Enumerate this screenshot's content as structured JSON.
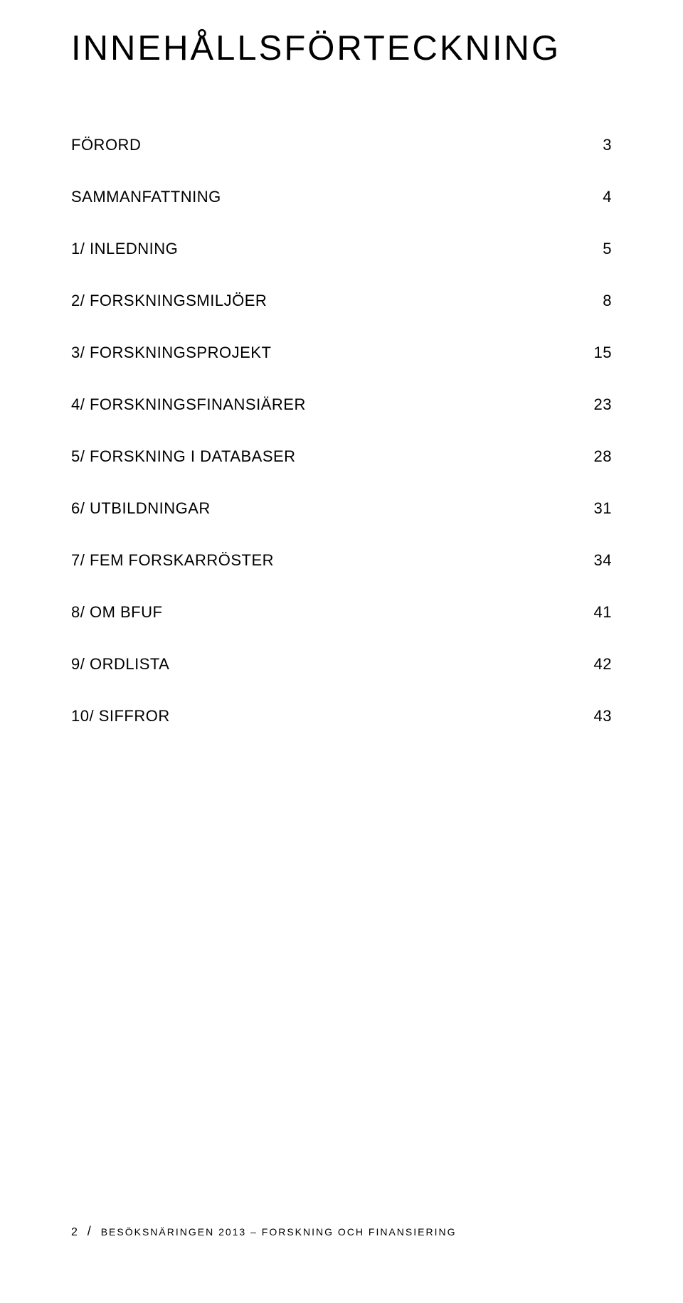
{
  "title": "INNEHÅLLSFÖRTECKNING",
  "toc": [
    {
      "label": "FÖRORD",
      "page": "3"
    },
    {
      "label": "SAMMANFATTNING",
      "page": "4"
    },
    {
      "label": "1/ INLEDNING",
      "page": "5"
    },
    {
      "label": "2/ FORSKNINGSMILJÖER",
      "page": "8"
    },
    {
      "label": "3/ FORSKNINGSPROJEKT",
      "page": "15"
    },
    {
      "label": "4/ FORSKNINGSFINANSIÄRER",
      "page": "23"
    },
    {
      "label": "5/ FORSKNING I DATABASER",
      "page": "28"
    },
    {
      "label": "6/ UTBILDNINGAR",
      "page": "31"
    },
    {
      "label": "7/ FEM FORSKARRÖSTER",
      "page": "34"
    },
    {
      "label": "8/ OM BFUF",
      "page": "41"
    },
    {
      "label": "9/ ORDLISTA",
      "page": "42"
    },
    {
      "label": "10/ SIFFROR",
      "page": "43"
    }
  ],
  "footer": {
    "page_number": "2",
    "slash": "/",
    "text": "BESÖKSNÄRINGEN 2013 – FORSKNING OCH FINANSIERING"
  },
  "style": {
    "background_color": "#ffffff",
    "text_color": "#000000",
    "title_fontsize": 49,
    "title_letter_spacing": 3,
    "entry_fontsize": 22,
    "entry_spacing": 47,
    "footer_fontsize": 14,
    "footer_letter_spacing": 2
  }
}
